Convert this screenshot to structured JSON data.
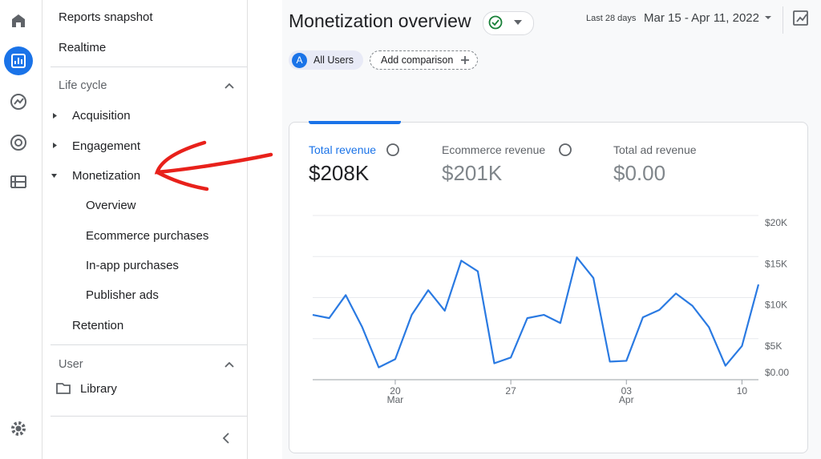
{
  "nav": {
    "reports_snapshot": "Reports snapshot",
    "realtime": "Realtime",
    "section_lifecycle": "Life cycle",
    "acquisition": "Acquisition",
    "engagement": "Engagement",
    "monetization": "Monetization",
    "sub_items": [
      "Overview",
      "Ecommerce purchases",
      "In-app purchases",
      "Publisher ads"
    ],
    "retention": "Retention",
    "section_user": "User",
    "library": "Library"
  },
  "header": {
    "title": "Monetization overview",
    "date_caption": "Last 28 days",
    "date_range": "Mar 15 - Apr 11, 2022"
  },
  "chips": {
    "avatar": "A",
    "all_users": "All Users",
    "add_comparison": "Add comparison"
  },
  "metrics": [
    {
      "label": "Total revenue",
      "value": "$208K"
    },
    {
      "label": "Ecommerce revenue",
      "value": "$201K"
    },
    {
      "label": "Total ad revenue",
      "value": "$0.00"
    }
  ],
  "chart_data": {
    "type": "line",
    "categories": [
      null,
      null,
      null,
      null,
      null,
      "20",
      null,
      null,
      null,
      null,
      null,
      null,
      "27",
      null,
      null,
      null,
      null,
      null,
      null,
      "03",
      null,
      null,
      null,
      null,
      null,
      null,
      "10",
      null
    ],
    "category_sublabels": [
      null,
      null,
      null,
      null,
      null,
      "Mar",
      null,
      null,
      null,
      null,
      null,
      null,
      null,
      null,
      null,
      null,
      null,
      null,
      null,
      "Apr",
      null,
      null,
      null,
      null,
      null,
      null,
      null,
      null
    ],
    "series": [
      {
        "name": "Total revenue",
        "color": "#2a7ae2",
        "values": [
          7900,
          7500,
          10300,
          6400,
          1500,
          2500,
          7900,
          10900,
          8400,
          14500,
          13200,
          2000,
          2700,
          7500,
          7900,
          6900,
          14900,
          12400,
          2200,
          2300,
          7600,
          8500,
          10500,
          9000,
          6400,
          1700,
          4100,
          11600
        ]
      }
    ],
    "ylim": [
      0,
      20000
    ],
    "yticks": [
      {
        "value": 0,
        "label": "$0.00"
      },
      {
        "value": 5000,
        "label": "$5K"
      },
      {
        "value": 10000,
        "label": "$10K"
      },
      {
        "value": 15000,
        "label": "$15K"
      },
      {
        "value": 20000,
        "label": "$20K"
      }
    ],
    "grid": true
  }
}
